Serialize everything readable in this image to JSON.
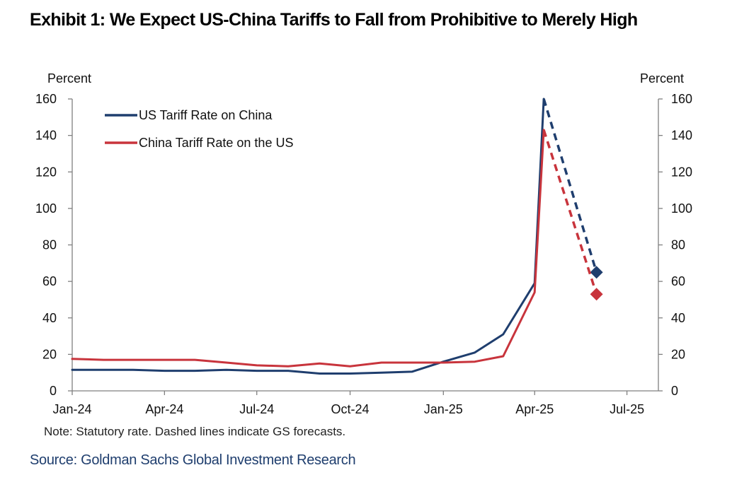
{
  "title": "Exhibit 1: We Expect US-China Tariffs to Fall from Prohibitive to Merely High",
  "note": "Note: Statutory rate. Dashed lines indicate GS forecasts.",
  "source": "Source: Goldman Sachs Global Investment Research",
  "chart_data": {
    "type": "line",
    "title": "",
    "xlabel": "",
    "ylabel_left": "Percent",
    "ylabel_right": "Percent",
    "ylim": [
      0,
      160
    ],
    "yticks": [
      0,
      20,
      40,
      60,
      80,
      100,
      120,
      140,
      160
    ],
    "xlim": [
      "2024-01-01",
      "2025-08-01"
    ],
    "xticks": [
      "2024-01-01",
      "2024-04-01",
      "2024-07-01",
      "2024-10-01",
      "2025-01-01",
      "2025-04-01",
      "2025-07-01"
    ],
    "xtick_labels": [
      "Jan-24",
      "Apr-24",
      "Jul-24",
      "Oct-24",
      "Jan-25",
      "Apr-25",
      "Jul-25"
    ],
    "grid": false,
    "legend_position": "top-left",
    "series": [
      {
        "name": "US Tariff Rate on China",
        "color": "#1f3e6e",
        "x": [
          "2024-01-01",
          "2024-02-01",
          "2024-03-01",
          "2024-04-01",
          "2024-05-01",
          "2024-06-01",
          "2024-07-01",
          "2024-08-01",
          "2024-09-01",
          "2024-10-01",
          "2024-11-01",
          "2024-12-01",
          "2025-01-01",
          "2025-02-01",
          "2025-03-01",
          "2025-04-01",
          "2025-04-10"
        ],
        "values": [
          11.5,
          11.5,
          11.5,
          11,
          11,
          11.5,
          11,
          11,
          9.5,
          9.5,
          10,
          10.5,
          16,
          21,
          31,
          59,
          160
        ],
        "forecast": {
          "x": [
            "2025-04-10",
            "2025-06-01"
          ],
          "values": [
            160,
            65
          ]
        }
      },
      {
        "name": "China Tariff Rate on the US",
        "color": "#c8343c",
        "x": [
          "2024-01-01",
          "2024-02-01",
          "2024-03-01",
          "2024-04-01",
          "2024-05-01",
          "2024-06-01",
          "2024-07-01",
          "2024-08-01",
          "2024-09-01",
          "2024-10-01",
          "2024-11-01",
          "2024-12-01",
          "2025-01-01",
          "2025-02-01",
          "2025-03-01",
          "2025-04-01",
          "2025-04-10"
        ],
        "values": [
          17.5,
          17,
          17,
          17,
          17,
          15.5,
          14,
          13.5,
          15,
          13.5,
          15.5,
          15.5,
          15.5,
          16,
          19,
          54,
          143
        ],
        "forecast": {
          "x": [
            "2025-04-10",
            "2025-06-01"
          ],
          "values": [
            143,
            53
          ]
        }
      }
    ]
  }
}
